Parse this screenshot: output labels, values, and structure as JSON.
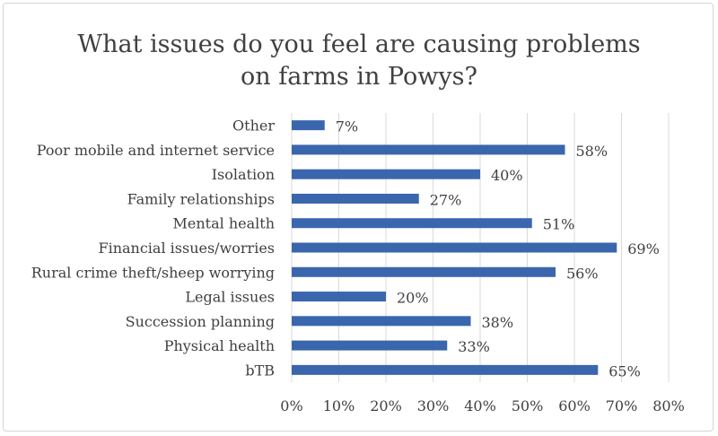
{
  "chart_data": {
    "type": "bar",
    "orientation": "horizontal",
    "title_lines": [
      "What issues do you feel are causing problems",
      "on farms in Powys?"
    ],
    "categories": [
      "Other",
      "Poor mobile and internet service",
      "Isolation",
      "Family relationships",
      "Mental health",
      "Financial issues/worries",
      "Rural crime theft/sheep worrying",
      "Legal issues",
      "Succession planning",
      "Physical health",
      "bTB"
    ],
    "values": [
      7,
      58,
      40,
      27,
      51,
      69,
      56,
      20,
      38,
      33,
      65
    ],
    "data_labels": [
      "7%",
      "58%",
      "40%",
      "27%",
      "51%",
      "69%",
      "56%",
      "20%",
      "38%",
      "33%",
      "65%"
    ],
    "xlim": [
      0,
      80
    ],
    "x_ticks": [
      0,
      10,
      20,
      30,
      40,
      50,
      60,
      70,
      80
    ],
    "x_tick_labels": [
      "0%",
      "10%",
      "20%",
      "30%",
      "40%",
      "50%",
      "60%",
      "70%",
      "80%"
    ],
    "grid": true,
    "bar_color": "#3a66ad",
    "gridline_color": "#d9d9d9",
    "text_color": "#404040"
  }
}
